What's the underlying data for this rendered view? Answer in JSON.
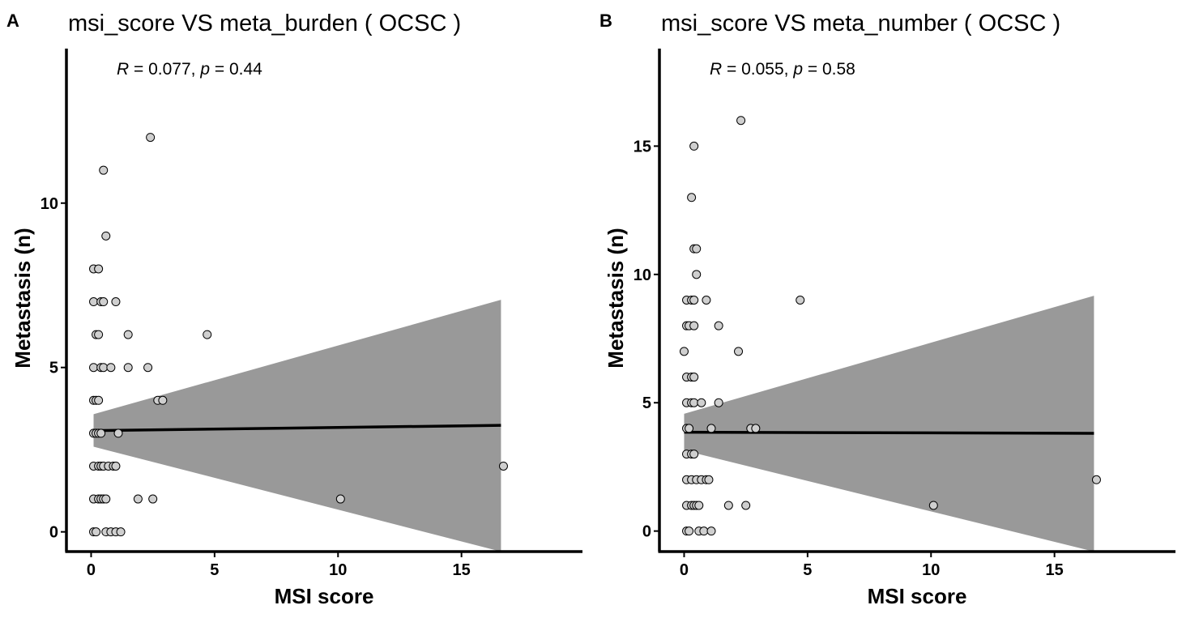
{
  "chart_data": [
    {
      "type": "scatter",
      "panel_label": "A",
      "title": "msi_score  VS  meta_burden ( OCSC )",
      "xlabel": "MSI score",
      "ylabel": "Metastasis (n)",
      "xlim": [
        -1.0,
        19.9
      ],
      "ylim": [
        -0.6,
        14.7
      ],
      "xticks": [
        0,
        5,
        10,
        15
      ],
      "yticks": [
        0,
        5,
        10
      ],
      "annotation": {
        "r_label": "R",
        "r_text": " = 0.077, ",
        "p_label": "p",
        "p_text": " = 0.44"
      },
      "fit": {
        "x": [
          0.1,
          16.6
        ],
        "y": [
          3.08,
          3.24
        ],
        "ci_low": [
          2.59,
          -0.6
        ],
        "ci_high": [
          3.58,
          7.06
        ]
      },
      "points": [
        {
          "x": 0.1,
          "y": 0
        },
        {
          "x": 0.2,
          "y": 0
        },
        {
          "x": 0.6,
          "y": 0
        },
        {
          "x": 0.8,
          "y": 0
        },
        {
          "x": 1.0,
          "y": 0
        },
        {
          "x": 1.2,
          "y": 0
        },
        {
          "x": 0.1,
          "y": 1
        },
        {
          "x": 0.3,
          "y": 1
        },
        {
          "x": 0.4,
          "y": 1
        },
        {
          "x": 0.5,
          "y": 1
        },
        {
          "x": 0.6,
          "y": 1
        },
        {
          "x": 1.9,
          "y": 1
        },
        {
          "x": 2.5,
          "y": 1
        },
        {
          "x": 10.1,
          "y": 1
        },
        {
          "x": 0.1,
          "y": 2
        },
        {
          "x": 0.3,
          "y": 2
        },
        {
          "x": 0.4,
          "y": 2
        },
        {
          "x": 0.5,
          "y": 2
        },
        {
          "x": 0.7,
          "y": 2
        },
        {
          "x": 0.9,
          "y": 2
        },
        {
          "x": 1.0,
          "y": 2
        },
        {
          "x": 16.7,
          "y": 2
        },
        {
          "x": 0.1,
          "y": 3
        },
        {
          "x": 0.2,
          "y": 3
        },
        {
          "x": 0.3,
          "y": 3
        },
        {
          "x": 0.4,
          "y": 3
        },
        {
          "x": 1.1,
          "y": 3
        },
        {
          "x": 0.1,
          "y": 4
        },
        {
          "x": 0.2,
          "y": 4
        },
        {
          "x": 0.3,
          "y": 4
        },
        {
          "x": 2.7,
          "y": 4
        },
        {
          "x": 2.9,
          "y": 4
        },
        {
          "x": 0.1,
          "y": 5
        },
        {
          "x": 0.4,
          "y": 5
        },
        {
          "x": 0.5,
          "y": 5
        },
        {
          "x": 0.8,
          "y": 5
        },
        {
          "x": 1.5,
          "y": 5
        },
        {
          "x": 2.3,
          "y": 5
        },
        {
          "x": 0.2,
          "y": 6
        },
        {
          "x": 0.3,
          "y": 6
        },
        {
          "x": 1.5,
          "y": 6
        },
        {
          "x": 4.7,
          "y": 6
        },
        {
          "x": 0.1,
          "y": 7
        },
        {
          "x": 0.4,
          "y": 7
        },
        {
          "x": 0.5,
          "y": 7
        },
        {
          "x": 1.0,
          "y": 7
        },
        {
          "x": 0.1,
          "y": 8
        },
        {
          "x": 0.3,
          "y": 8
        },
        {
          "x": 0.6,
          "y": 9
        },
        {
          "x": 0.5,
          "y": 11
        },
        {
          "x": 2.4,
          "y": 12
        }
      ]
    },
    {
      "type": "scatter",
      "panel_label": "B",
      "title": "msi_score  VS  meta_number ( OCSC )",
      "xlabel": "MSI score",
      "ylabel": "Metastasis (n)",
      "xlim": [
        -1.0,
        19.9
      ],
      "ylim": [
        -0.8,
        18.8
      ],
      "xticks": [
        0,
        5,
        10,
        15
      ],
      "yticks": [
        0,
        5,
        10,
        15
      ],
      "annotation": {
        "r_label": "R",
        "r_text": " = 0.055, ",
        "p_label": "p",
        "p_text": " = 0.58"
      },
      "fit": {
        "x": [
          0.0,
          16.6
        ],
        "y": [
          3.85,
          3.81
        ],
        "ci_low": [
          3.14,
          -0.8
        ],
        "ci_high": [
          4.57,
          9.17
        ]
      },
      "points": [
        {
          "x": 0.1,
          "y": 0
        },
        {
          "x": 0.2,
          "y": 0
        },
        {
          "x": 0.6,
          "y": 0
        },
        {
          "x": 0.8,
          "y": 0
        },
        {
          "x": 1.1,
          "y": 0
        },
        {
          "x": 0.1,
          "y": 1
        },
        {
          "x": 0.3,
          "y": 1
        },
        {
          "x": 0.4,
          "y": 1
        },
        {
          "x": 0.5,
          "y": 1
        },
        {
          "x": 0.6,
          "y": 1
        },
        {
          "x": 1.8,
          "y": 1
        },
        {
          "x": 2.5,
          "y": 1
        },
        {
          "x": 10.1,
          "y": 1
        },
        {
          "x": 0.1,
          "y": 2
        },
        {
          "x": 0.3,
          "y": 2
        },
        {
          "x": 0.5,
          "y": 2
        },
        {
          "x": 0.7,
          "y": 2
        },
        {
          "x": 0.9,
          "y": 2
        },
        {
          "x": 1.0,
          "y": 2
        },
        {
          "x": 16.7,
          "y": 2
        },
        {
          "x": 0.1,
          "y": 3
        },
        {
          "x": 0.3,
          "y": 3
        },
        {
          "x": 0.4,
          "y": 3
        },
        {
          "x": 0.1,
          "y": 4
        },
        {
          "x": 0.2,
          "y": 4
        },
        {
          "x": 1.1,
          "y": 4
        },
        {
          "x": 2.7,
          "y": 4
        },
        {
          "x": 2.9,
          "y": 4
        },
        {
          "x": 0.1,
          "y": 5
        },
        {
          "x": 0.3,
          "y": 5
        },
        {
          "x": 0.4,
          "y": 5
        },
        {
          "x": 0.7,
          "y": 5
        },
        {
          "x": 1.4,
          "y": 5
        },
        {
          "x": 0.1,
          "y": 6
        },
        {
          "x": 0.3,
          "y": 6
        },
        {
          "x": 0.4,
          "y": 6
        },
        {
          "x": 0.0,
          "y": 7
        },
        {
          "x": 2.2,
          "y": 7
        },
        {
          "x": 0.1,
          "y": 8
        },
        {
          "x": 0.2,
          "y": 8
        },
        {
          "x": 0.4,
          "y": 8
        },
        {
          "x": 1.4,
          "y": 8
        },
        {
          "x": 0.1,
          "y": 9
        },
        {
          "x": 0.3,
          "y": 9
        },
        {
          "x": 0.4,
          "y": 9
        },
        {
          "x": 0.9,
          "y": 9
        },
        {
          "x": 4.7,
          "y": 9
        },
        {
          "x": 0.5,
          "y": 10
        },
        {
          "x": 0.4,
          "y": 11
        },
        {
          "x": 0.5,
          "y": 11
        },
        {
          "x": 0.3,
          "y": 13
        },
        {
          "x": 0.4,
          "y": 15
        },
        {
          "x": 2.3,
          "y": 16
        }
      ]
    }
  ]
}
